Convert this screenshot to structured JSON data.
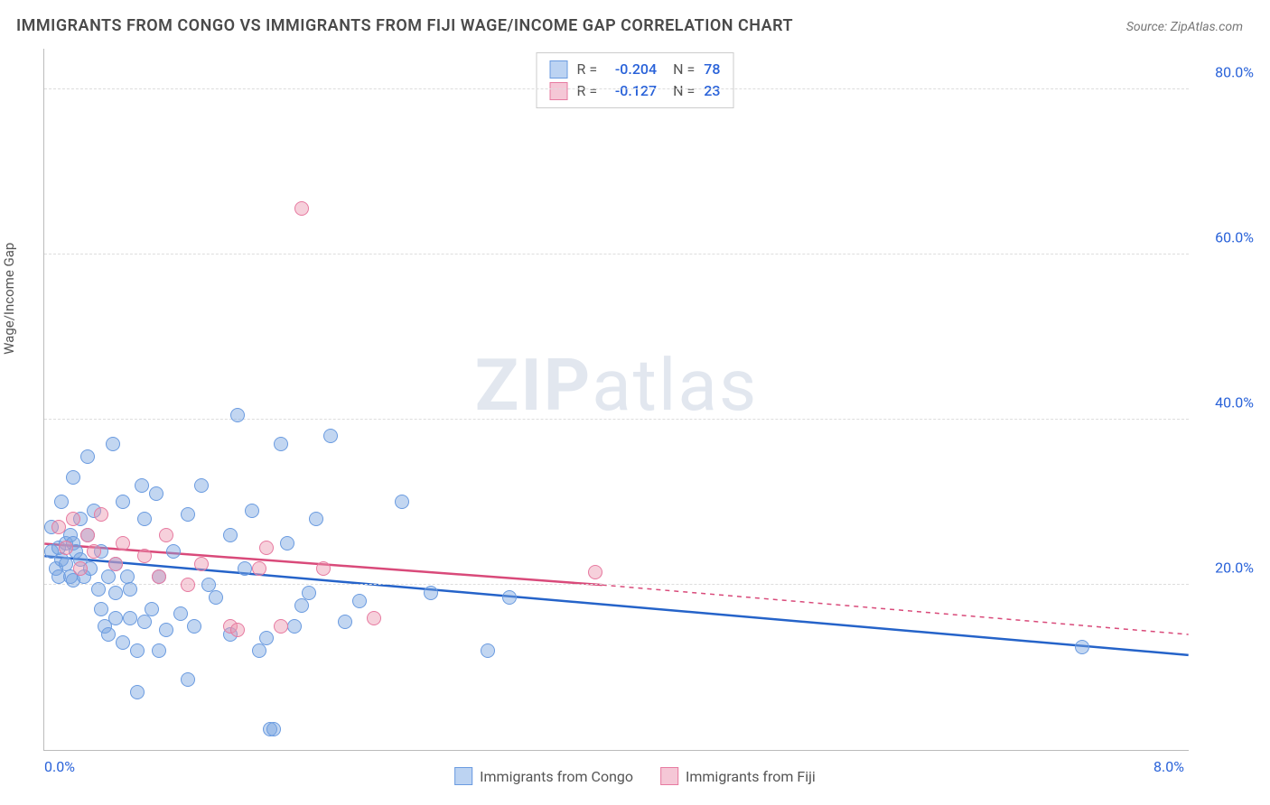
{
  "title": "IMMIGRANTS FROM CONGO VS IMMIGRANTS FROM FIJI WAGE/INCOME GAP CORRELATION CHART",
  "source": "Source: ZipAtlas.com",
  "ylabel": "Wage/Income Gap",
  "watermark_bold": "ZIP",
  "watermark_light": "atlas",
  "chart": {
    "type": "scatter",
    "xlim": [
      0,
      8
    ],
    "ylim": [
      0,
      85
    ],
    "xticks": [
      {
        "value": 0,
        "label": "0.0%"
      },
      {
        "value": 8,
        "label": "8.0%"
      }
    ],
    "yticks": [
      {
        "value": 20,
        "label": "20.0%"
      },
      {
        "value": 40,
        "label": "40.0%"
      },
      {
        "value": 60,
        "label": "60.0%"
      },
      {
        "value": 80,
        "label": "80.0%"
      }
    ],
    "grid_color": "#dddddd",
    "background_color": "#ffffff",
    "series": [
      {
        "name": "Immigrants from Congo",
        "r": "-0.204",
        "n": "78",
        "fill": "rgba(120,165,225,0.45)",
        "stroke": "#6a9be0",
        "line_color": "#2563c9",
        "swatch_fill": "#bcd3f2",
        "swatch_stroke": "#6a9be0",
        "regression": {
          "x1": 0,
          "y1": 23.5,
          "x2": 8,
          "y2": 11.5,
          "dash_from_x": 8
        },
        "points": [
          [
            0.05,
            24
          ],
          [
            0.05,
            27
          ],
          [
            0.08,
            22
          ],
          [
            0.1,
            21
          ],
          [
            0.1,
            24.5
          ],
          [
            0.12,
            23
          ],
          [
            0.12,
            30
          ],
          [
            0.15,
            22.5
          ],
          [
            0.15,
            25
          ],
          [
            0.18,
            21
          ],
          [
            0.18,
            26
          ],
          [
            0.2,
            20.5
          ],
          [
            0.2,
            25
          ],
          [
            0.2,
            33
          ],
          [
            0.22,
            24
          ],
          [
            0.25,
            23
          ],
          [
            0.25,
            28
          ],
          [
            0.28,
            21
          ],
          [
            0.3,
            26
          ],
          [
            0.3,
            35.5
          ],
          [
            0.32,
            22
          ],
          [
            0.35,
            29
          ],
          [
            0.38,
            19.5
          ],
          [
            0.4,
            17
          ],
          [
            0.4,
            24
          ],
          [
            0.42,
            15
          ],
          [
            0.45,
            14
          ],
          [
            0.45,
            21
          ],
          [
            0.48,
            37
          ],
          [
            0.5,
            16
          ],
          [
            0.5,
            19
          ],
          [
            0.5,
            22.5
          ],
          [
            0.55,
            13
          ],
          [
            0.55,
            30
          ],
          [
            0.58,
            21
          ],
          [
            0.6,
            16
          ],
          [
            0.6,
            19.5
          ],
          [
            0.65,
            7
          ],
          [
            0.65,
            12
          ],
          [
            0.68,
            32
          ],
          [
            0.7,
            15.5
          ],
          [
            0.7,
            28
          ],
          [
            0.75,
            17
          ],
          [
            0.78,
            31
          ],
          [
            0.8,
            12
          ],
          [
            0.8,
            21
          ],
          [
            0.85,
            14.5
          ],
          [
            0.9,
            24
          ],
          [
            0.95,
            16.5
          ],
          [
            1.0,
            8.5
          ],
          [
            1.0,
            28.5
          ],
          [
            1.05,
            15
          ],
          [
            1.1,
            32
          ],
          [
            1.15,
            20
          ],
          [
            1.2,
            18.5
          ],
          [
            1.3,
            26
          ],
          [
            1.3,
            14
          ],
          [
            1.35,
            40.5
          ],
          [
            1.4,
            22
          ],
          [
            1.45,
            29
          ],
          [
            1.5,
            12
          ],
          [
            1.55,
            13.5
          ],
          [
            1.58,
            2.5
          ],
          [
            1.6,
            2.5
          ],
          [
            1.65,
            37
          ],
          [
            1.7,
            25
          ],
          [
            1.75,
            15
          ],
          [
            1.8,
            17.5
          ],
          [
            1.85,
            19
          ],
          [
            1.9,
            28
          ],
          [
            2.0,
            38
          ],
          [
            2.1,
            15.5
          ],
          [
            2.2,
            18
          ],
          [
            2.5,
            30
          ],
          [
            2.7,
            19
          ],
          [
            3.1,
            12
          ],
          [
            3.25,
            18.5
          ],
          [
            7.25,
            12.5
          ]
        ]
      },
      {
        "name": "Immigrants from Fiji",
        "r": "-0.127",
        "n": "23",
        "fill": "rgba(235,150,175,0.45)",
        "stroke": "#e77aa0",
        "line_color": "#d94a7a",
        "swatch_fill": "#f5c7d6",
        "swatch_stroke": "#e77aa0",
        "regression": {
          "x1": 0,
          "y1": 25,
          "x2": 3.9,
          "y2": 20,
          "dash_from_x": 3.9,
          "dash_to_x": 8,
          "dash_to_y": 14
        },
        "points": [
          [
            0.1,
            27
          ],
          [
            0.15,
            24.5
          ],
          [
            0.2,
            28
          ],
          [
            0.25,
            22
          ],
          [
            0.3,
            26
          ],
          [
            0.35,
            24
          ],
          [
            0.4,
            28.5
          ],
          [
            0.5,
            22.5
          ],
          [
            0.55,
            25
          ],
          [
            0.7,
            23.5
          ],
          [
            0.8,
            21
          ],
          [
            0.85,
            26
          ],
          [
            1.0,
            20
          ],
          [
            1.1,
            22.5
          ],
          [
            1.3,
            15
          ],
          [
            1.35,
            14.5
          ],
          [
            1.5,
            22
          ],
          [
            1.55,
            24.5
          ],
          [
            1.65,
            15
          ],
          [
            1.8,
            65.5
          ],
          [
            1.95,
            22
          ],
          [
            2.3,
            16
          ],
          [
            3.85,
            21.5
          ]
        ]
      }
    ]
  }
}
